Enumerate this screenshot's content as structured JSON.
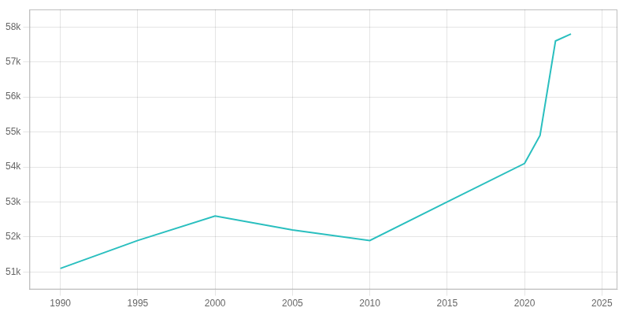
{
  "chart_data": {
    "type": "line",
    "x": [
      1990,
      1995,
      2000,
      2005,
      2010,
      2015,
      2020,
      2021,
      2022,
      2023
    ],
    "values": [
      51100,
      51900,
      52600,
      52200,
      51900,
      53000,
      54100,
      54900,
      57600,
      57800
    ],
    "color": "#2abfbf",
    "xlim": [
      1988,
      2026
    ],
    "xticks": [
      1990,
      1995,
      2000,
      2005,
      2010,
      2015,
      2020,
      2025
    ],
    "ylim": [
      50500,
      58500
    ],
    "yticks": [
      {
        "value": 51000,
        "label": "51k"
      },
      {
        "value": 52000,
        "label": "52k"
      },
      {
        "value": 53000,
        "label": "53k"
      },
      {
        "value": 54000,
        "label": "54k"
      },
      {
        "value": 55000,
        "label": "55k"
      },
      {
        "value": 56000,
        "label": "56k"
      },
      {
        "value": 57000,
        "label": "57k"
      },
      {
        "value": 58000,
        "label": "58k"
      }
    ],
    "grid": true
  }
}
